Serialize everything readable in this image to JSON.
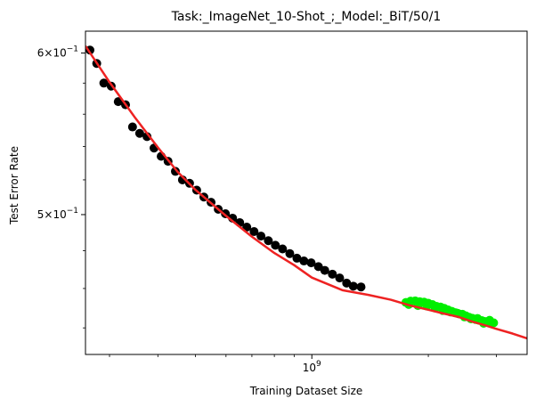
{
  "chart_data": {
    "type": "scatter",
    "title": "Task:_ImageNet_10-Shot_;_Model:_BiT/50/1",
    "xlabel": "Training Dataset Size",
    "ylabel": "Test Error Rate",
    "xscale": "log",
    "yscale": "log",
    "xlim": [
      260000000.0,
      3600000000.0
    ],
    "ylim": [
      0.427,
      0.615
    ],
    "x_tick_labels": [
      {
        "value": 1000000000.0,
        "label": "10^9"
      }
    ],
    "y_tick_labels": [
      {
        "value": 0.5,
        "label": "5×10^−1"
      },
      {
        "value": 0.6,
        "label": "6×10^−1"
      }
    ],
    "grid": false,
    "legend": "none",
    "series": [
      {
        "role": "observed",
        "marker": "circle",
        "color": "#000000",
        "x": [
          267000000.0,
          278000000.0,
          290000000.0,
          303000000.0,
          316000000.0,
          330000000.0,
          344000000.0,
          359000000.0,
          375000000.0,
          391000000.0,
          408000000.0,
          425000000.0,
          444000000.0,
          463000000.0,
          483000000.0,
          504000000.0,
          526000000.0,
          549000000.0,
          573000000.0,
          598000000.0,
          624000000.0,
          651000000.0,
          679000000.0,
          709000000.0,
          739000000.0,
          772000000.0,
          805000000.0,
          840000000.0,
          877000000.0,
          915000000.0,
          954000000.0,
          996000000.0,
          1040000000.0,
          1080000000.0,
          1130000000.0,
          1180000000.0,
          1230000000.0,
          1280000000.0,
          1340000000.0
        ],
        "y": [
          0.602,
          0.593,
          0.58,
          0.578,
          0.568,
          0.566,
          0.552,
          0.548,
          0.546,
          0.539,
          0.534,
          0.531,
          0.525,
          0.52,
          0.518,
          0.514,
          0.51,
          0.507,
          0.503,
          0.5005,
          0.498,
          0.4955,
          0.493,
          0.4905,
          0.488,
          0.4855,
          0.483,
          0.481,
          0.4785,
          0.476,
          0.4745,
          0.4735,
          0.4715,
          0.4695,
          0.4675,
          0.4655,
          0.4628,
          0.4612,
          0.4608
        ]
      },
      {
        "role": "held-out",
        "marker": "circle",
        "color": "#00ee00",
        "x": [
          1750000000.0,
          1800000000.0,
          1850000000.0,
          1900000000.0,
          1950000000.0,
          2000000000.0,
          2050000000.0,
          2100000000.0,
          2150000000.0,
          2200000000.0,
          2250000000.0,
          2300000000.0,
          2350000000.0,
          2400000000.0,
          2450000000.0,
          2500000000.0,
          2550000000.0,
          2600000000.0,
          2650000000.0,
          2700000000.0,
          2750000000.0,
          2800000000.0,
          2850000000.0,
          2900000000.0,
          2950000000.0,
          1780000000.0,
          1880000000.0,
          1980000000.0,
          2080000000.0,
          2180000000.0,
          2280000000.0,
          2380000000.0,
          2480000000.0,
          2580000000.0,
          2680000000.0,
          2780000000.0,
          2880000000.0
        ],
        "y": [
          0.4528,
          0.4535,
          0.4536,
          0.4532,
          0.453,
          0.4524,
          0.4517,
          0.4508,
          0.4505,
          0.4498,
          0.449,
          0.4483,
          0.4476,
          0.447,
          0.4468,
          0.446,
          0.4453,
          0.4448,
          0.4442,
          0.4438,
          0.4436,
          0.4432,
          0.443,
          0.4428,
          0.4425,
          0.4518,
          0.4512,
          0.451,
          0.45,
          0.4487,
          0.448,
          0.4473,
          0.4455,
          0.4445,
          0.4447,
          0.4423,
          0.4438
        ]
      },
      {
        "role": "fit",
        "line": "solid",
        "color": "#ee2222",
        "x": [
          260000000.0,
          300000000.0,
          350000000.0,
          400000000.0,
          450000000.0,
          500000000.0,
          600000000.0,
          700000000.0,
          800000000.0,
          900000000.0,
          1000000000.0,
          1200000000.0,
          1400000000.0,
          1600000000.0,
          1800000000.0,
          2000000000.0,
          2200000000.0,
          2400000000.0,
          2600000000.0,
          2800000000.0,
          3000000000.0,
          3300000000.0,
          3600000000.0
        ],
        "y": [
          0.6048,
          0.5806,
          0.5575,
          0.5394,
          0.5247,
          0.5142,
          0.4993,
          0.4877,
          0.4788,
          0.4723,
          0.4657,
          0.4591,
          0.4567,
          0.4542,
          0.4512,
          0.4491,
          0.4471,
          0.4454,
          0.4431,
          0.4413,
          0.4395,
          0.4372,
          0.4348
        ]
      }
    ]
  }
}
